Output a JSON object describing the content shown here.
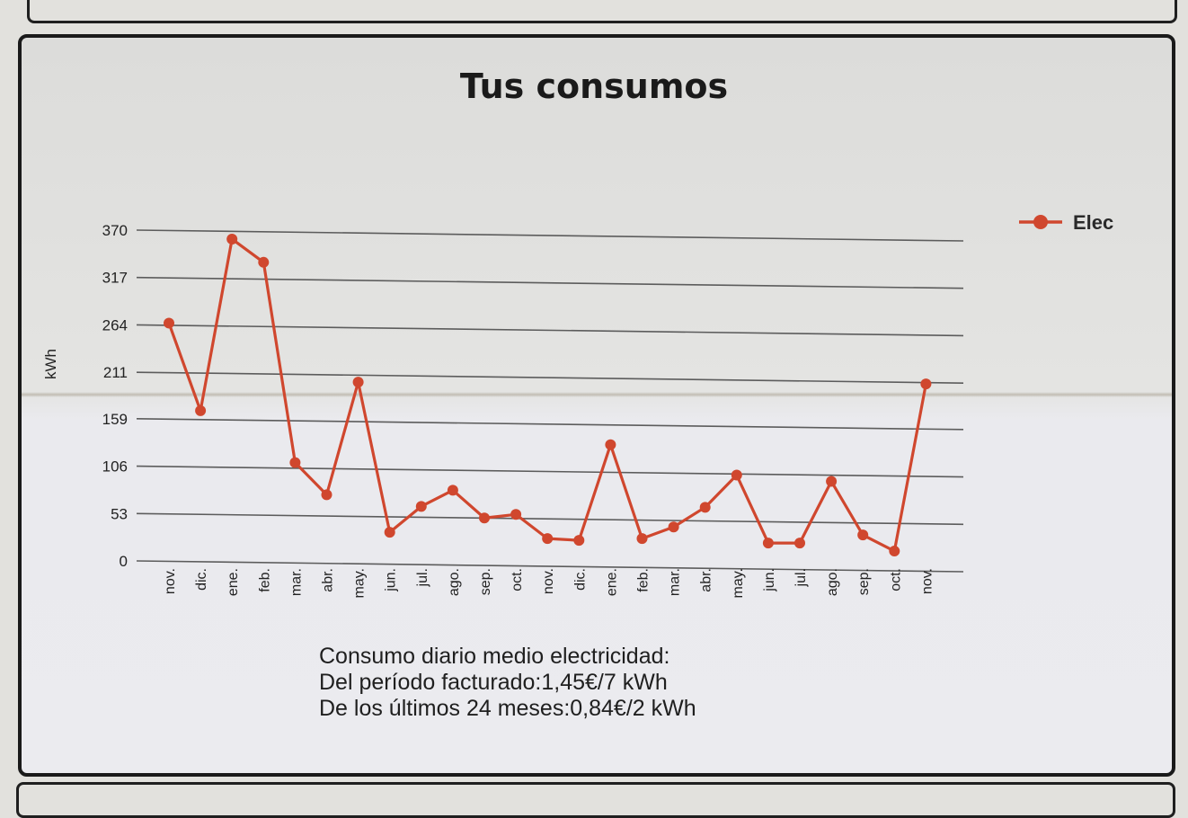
{
  "page": {
    "title": "Tus consumos",
    "summary": {
      "line1": "Consumo diario medio electricidad:",
      "line2": "Del período facturado:1,45€/7 kWh",
      "line3": "De los últimos 24 meses:0,84€/2 kWh"
    }
  },
  "colors": {
    "series": "#d0472e",
    "grid": "#5c5c5c",
    "text": "#1f1f1f"
  },
  "chart_data": {
    "type": "line",
    "ylabel": "kWh",
    "yticks": [
      "0",
      "53",
      "106",
      "159",
      "211",
      "264",
      "317",
      "370"
    ],
    "ylim": [
      0,
      370
    ],
    "grid": true,
    "legend_position": "top-right",
    "categories": [
      "nov.",
      "dic.",
      "ene.",
      "feb.",
      "mar.",
      "abr.",
      "may.",
      "jun.",
      "jul.",
      "ago.",
      "sep.",
      "oct.",
      "nov.",
      "dic.",
      "ene.",
      "feb.",
      "mar.",
      "abr.",
      "may.",
      "jun.",
      "jul.",
      "ago.",
      "sep.",
      "oct.",
      "nov."
    ],
    "series": [
      {
        "name": "Elec",
        "values": [
          266,
          168,
          360,
          334,
          110,
          74,
          200,
          32,
          61,
          79,
          48,
          52,
          25,
          23,
          130,
          25,
          38,
          60,
          96,
          20,
          20,
          89,
          29,
          11,
          198
        ]
      }
    ]
  }
}
